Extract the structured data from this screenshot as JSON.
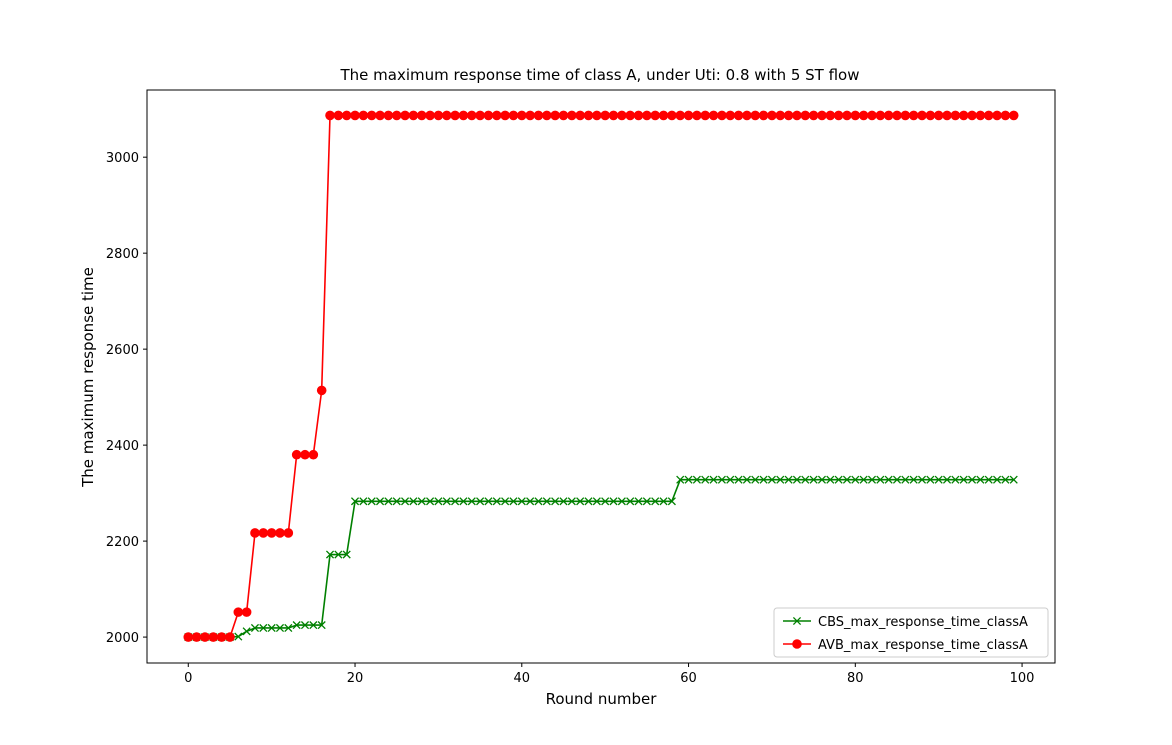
{
  "chart_data": {
    "type": "line",
    "title": "The maximum response time of class A, under Uti: 0.8 with 5 ST flow",
    "xlabel": "Round number",
    "ylabel": "The maximum response time",
    "xlim": [
      -4.95,
      103.95
    ],
    "ylim": [
      1946,
      3140
    ],
    "xticks": [
      0,
      20,
      40,
      60,
      80,
      100
    ],
    "yticks": [
      2000,
      2200,
      2400,
      2600,
      2800,
      3000
    ],
    "grid": false,
    "legend_position": "lower-right",
    "series": [
      {
        "name": "CBS_max_response_time_classA",
        "color": "#008000",
        "marker": "x",
        "steps": [
          {
            "from": 0,
            "to": 5,
            "value": 2000
          },
          {
            "from": 6,
            "to": 6,
            "value": 2001
          },
          {
            "from": 7,
            "to": 7,
            "value": 2012
          },
          {
            "from": 8,
            "to": 12,
            "value": 2019
          },
          {
            "from": 13,
            "to": 16,
            "value": 2025
          },
          {
            "from": 17,
            "to": 19,
            "value": 2172
          },
          {
            "from": 20,
            "to": 58,
            "value": 2283
          },
          {
            "from": 59,
            "to": 99,
            "value": 2328
          }
        ]
      },
      {
        "name": "AVB_max_response_time_classA",
        "color": "#ff0000",
        "marker": "o",
        "steps": [
          {
            "from": 0,
            "to": 5,
            "value": 2000
          },
          {
            "from": 6,
            "to": 7,
            "value": 2052
          },
          {
            "from": 8,
            "to": 12,
            "value": 2217
          },
          {
            "from": 13,
            "to": 15,
            "value": 2380
          },
          {
            "from": 16,
            "to": 16,
            "value": 2514
          },
          {
            "from": 17,
            "to": 99,
            "value": 3087
          }
        ]
      }
    ]
  }
}
